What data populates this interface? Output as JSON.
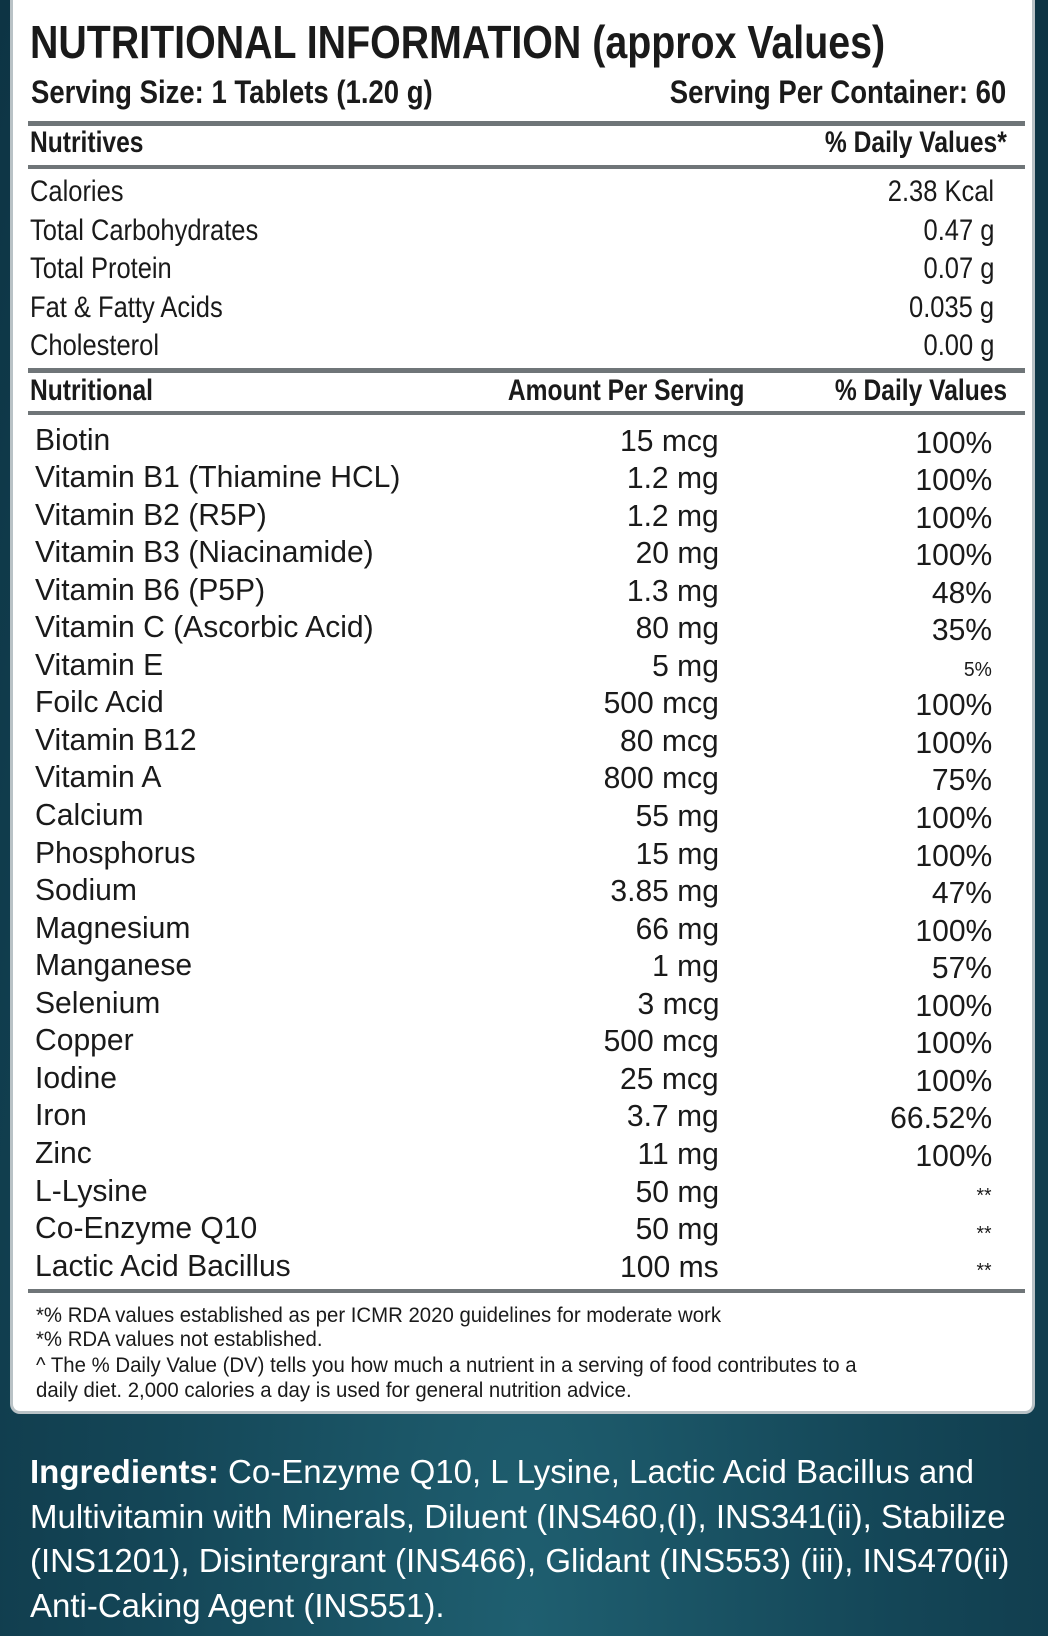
{
  "header": {
    "title": "NUTRITIONAL INFORMATION (approx Values)",
    "serving_size": "Serving Size: 1 Tablets (1.20 g)",
    "serving_per_container": "Serving Per Container: 60"
  },
  "table1": {
    "headers": [
      "Nutritives",
      "% Daily Values*"
    ],
    "rows": [
      [
        "Calories",
        "2.38 Kcal"
      ],
      [
        "Total Carbohydrates",
        "0.47 g"
      ],
      [
        "Total Protein",
        "0.07 g"
      ],
      [
        "Fat & Fatty Acids",
        "0.035 g"
      ],
      [
        "Cholesterol",
        "0.00 g"
      ]
    ]
  },
  "table2": {
    "headers": [
      "Nutritional",
      "Amount Per Serving",
      "% Daily Values"
    ],
    "rows": [
      [
        "Biotin",
        "15 mcg",
        "100%"
      ],
      [
        "Vitamin B1 (Thiamine HCL)",
        "1.2 mg",
        "100%"
      ],
      [
        "Vitamin B2 (R5P)",
        "1.2 mg",
        "100%"
      ],
      [
        "Vitamin B3 (Niacinamide)",
        "20 mg",
        "100%"
      ],
      [
        "Vitamin B6 (P5P)",
        "1.3 mg",
        "48%"
      ],
      [
        "Vitamin C (Ascorbic Acid)",
        "80 mg",
        "35%"
      ],
      [
        "Vitamin E",
        "5 mg",
        "5%"
      ],
      [
        "Foilc Acid",
        "500 mcg",
        "100%"
      ],
      [
        "Vitamin B12",
        "80 mcg",
        "100%"
      ],
      [
        "Vitamin A",
        "800 mcg",
        "75%"
      ],
      [
        "Calcium",
        "55 mg",
        "100%"
      ],
      [
        "Phosphorus",
        "15 mg",
        "100%"
      ],
      [
        "Sodium",
        "3.85 mg",
        "47%"
      ],
      [
        "Magnesium",
        "66 mg",
        "100%"
      ],
      [
        "Manganese",
        "1 mg",
        "57%"
      ],
      [
        "Selenium",
        "3 mcg",
        "100%"
      ],
      [
        "Copper",
        "500 mcg",
        "100%"
      ],
      [
        "Iodine",
        "25 mcg",
        "100%"
      ],
      [
        "Iron",
        "3.7 mg",
        "66.52%"
      ],
      [
        "Zinc",
        "11 mg",
        "100%"
      ],
      [
        "L-Lysine",
        "50 mg",
        "**"
      ],
      [
        "Co-Enzyme Q10",
        "50 mg",
        "**"
      ],
      [
        "Lactic Acid Bacillus",
        "100 ms",
        "**"
      ]
    ]
  },
  "footnotes": [
    "*% RDA values established as per ICMR 2020 guidelines for moderate work",
    "*% RDA values not established.",
    "^ The % Daily Value (DV) tells you how much a nutrient in a serving of food contributes to a",
    "daily diet. 2,000 calories a day is used for general nutrition advice."
  ],
  "ingredients": {
    "label": "Ingredients:",
    "lines": [
      " Co-Enzyme Q10, L Lysine, Lactic Acid Bacillus and",
      "Multivitamin with Minerals, Diluent (INS460,(I), INS341(ii), Stabilize",
      "(INS1201), Disintergrant (INS466), Glidant (INS553) (iii), INS470(ii)",
      "Anti-Caking Agent (INS551)."
    ]
  }
}
